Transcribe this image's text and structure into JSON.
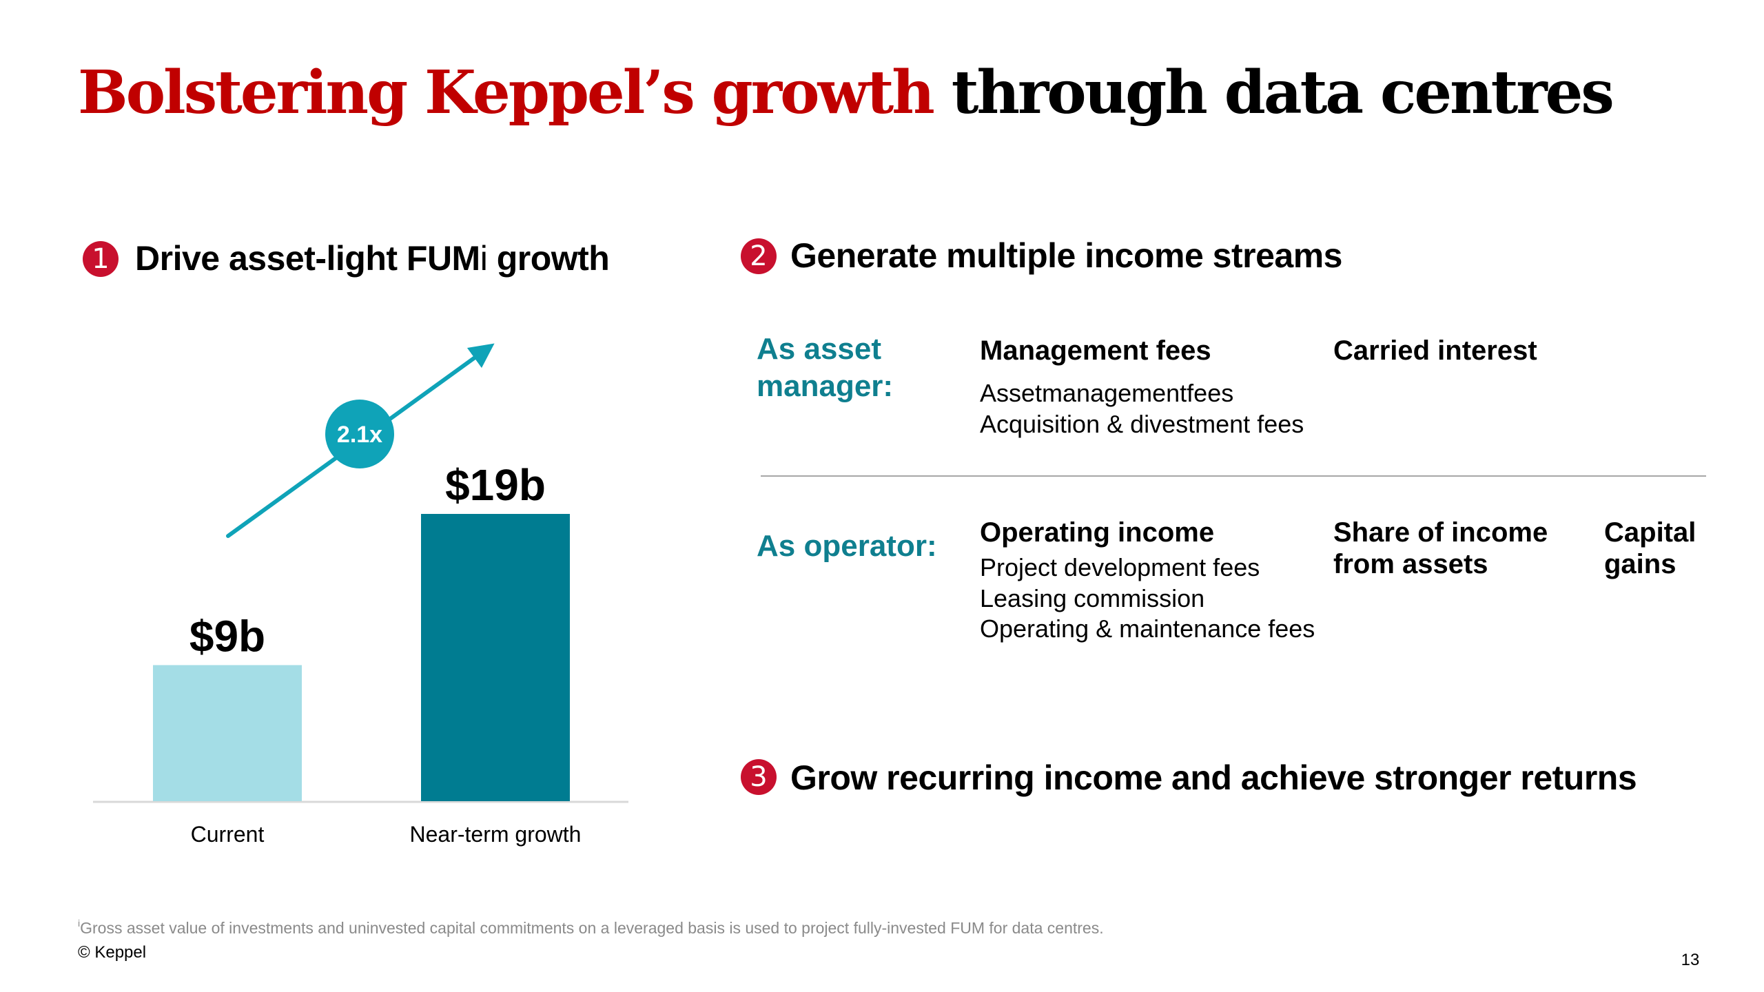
{
  "title": {
    "highlight": "Bolstering Keppel’s growth",
    "rest": "through data centres"
  },
  "sections": [
    {
      "number": "1",
      "heading": "Drive asset-light FUM",
      "superscript": "i",
      "heading_suffix": " growth"
    },
    {
      "number": "2",
      "heading": "Generate multiple income streams"
    },
    {
      "number": "3",
      "heading": "Grow recurring income and achieve stronger returns"
    }
  ],
  "income_streams": {
    "asset_manager": {
      "role_line1": "As asset",
      "role_line2": "manager:",
      "columns": [
        {
          "heading": "Management fees",
          "items": [
            "Assetmanagementfees",
            "Acquisition & divestment fees"
          ]
        },
        {
          "heading": "Carried interest",
          "items": []
        }
      ]
    },
    "operator": {
      "role": "As operator:",
      "columns": [
        {
          "heading": "Operating income",
          "items": [
            "Project development fees",
            "Leasing commission",
            "Operating & maintenance fees"
          ]
        },
        {
          "heading_line1": "Share of income",
          "heading_line2": "from assets"
        },
        {
          "heading_line1": "Capital",
          "heading_line2": "gains"
        }
      ]
    }
  },
  "chart_data": {
    "type": "bar",
    "title": "Drive asset-light FUM growth",
    "categories": [
      "Current",
      "Near-term growth"
    ],
    "values": [
      9,
      19
    ],
    "value_labels": [
      "$9b",
      "$19b"
    ],
    "unit": "S$ billion",
    "multiplier_label": "2.1x",
    "xlabel": "",
    "ylabel": "",
    "ylim": [
      0,
      19
    ],
    "grid": false,
    "colors": [
      "#a4dde6",
      "#007c91"
    ],
    "arrow_color": "#0fa3b8"
  },
  "footer": {
    "footnote_marker": "i",
    "footnote": "Gross asset value of investments and uninvested capital commitments on a leveraged basis is used to project fully-invested FUM for data centres.",
    "copyright": "© Keppel",
    "page_number": "13"
  },
  "colors": {
    "title_red": "#c00000",
    "badge_red": "#c8102e",
    "role_teal": "#0f7f8f"
  }
}
